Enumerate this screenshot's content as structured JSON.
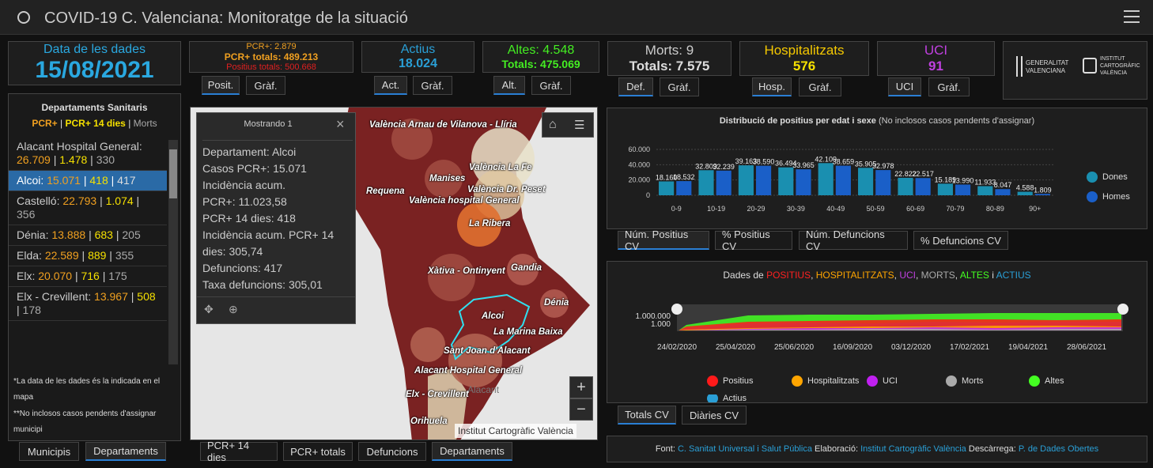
{
  "header": {
    "title": "COVID-19 C. Valenciana: Monitoratge de la situació"
  },
  "date_box": {
    "label": "Data de les dades",
    "value": "15/08/2021"
  },
  "pcr_box": {
    "line1": "PCR+: 2.879",
    "line2": "PCR+ totals: 489.213",
    "line3": "Positius totals: 500.668"
  },
  "actius_box": {
    "label": "Actius",
    "value": "18.024"
  },
  "altes_box": {
    "line1": "Altes: 4.548",
    "line2": "Totals: 475.069"
  },
  "morts_box": {
    "line1": "Morts: 9",
    "line2": "Totals: 7.575"
  },
  "hosp_box": {
    "label": "Hospitalitzats",
    "value": "576"
  },
  "uci_box": {
    "label": "UCI",
    "value": "91"
  },
  "logos": {
    "gva1": "GENERALITAT",
    "gva2": "VALENCIANA",
    "icv1": "INSTITUT",
    "icv2": "CARTOGRÀFIC",
    "icv3": "VALÈNCIA"
  },
  "tabs": {
    "posit": "Posit.",
    "graf": "Gràf.",
    "act": "Act.",
    "alt": "Alt.",
    "def": "Def.",
    "hosp": "Hosp.",
    "uci": "UCI"
  },
  "dept": {
    "title": "Departaments Sanitaris",
    "legend_pcr": "PCR+",
    "legend_14": "PCR+ 14 dies",
    "legend_morts": "Morts",
    "rows": [
      {
        "name": "Alacant Hospital General:",
        "a": "26.709",
        "b": "1.478",
        "c": "330"
      },
      {
        "name": "Alcoi:",
        "a": "15.071",
        "b": "418",
        "c": "417"
      },
      {
        "name": "Castelló:",
        "a": "22.793",
        "b": "1.074",
        "c": "356"
      },
      {
        "name": "Dénia:",
        "a": "13.888",
        "b": "683",
        "c": "205"
      },
      {
        "name": "Elda:",
        "a": "22.589",
        "b": "889",
        "c": "355"
      },
      {
        "name": "Elx:",
        "a": "20.070",
        "b": "716",
        "c": "175"
      },
      {
        "name": "Elx - Crevillent:",
        "a": "13.967",
        "b": "508",
        "c": "178"
      }
    ],
    "note1": "*La data de les dades és la indicada en el mapa",
    "note2": "**No inclosos casos pendents d'assignar municipi",
    "tab_muni": "Municipis",
    "tab_dept": "Departaments"
  },
  "popup": {
    "title": "Mostrando 1",
    "lines": [
      "Departament: Alcoi",
      "Casos PCR+: 15.071",
      "Incidència acum.",
      "PCR+: 11.023,58",
      "PCR+ 14 dies: 418",
      "Incidència acum. PCR+ 14",
      "dies: 305,74",
      "Defuncions: 417",
      "Taxa defuncions: 305,01"
    ]
  },
  "map": {
    "attribution": "Institut Cartogràfic València",
    "cities": [
      "València Arnau de Vilanova - Llíria",
      "València La Fe",
      "Manises",
      "València Dr. Peset",
      "Requena",
      "València hospital General",
      "La Ribera",
      "Xàtiva - Ontinyent",
      "Gandia",
      "Dénia",
      "Alcoi",
      "La Marina Baixa",
      "Sant Joan d'Alacant",
      "Alacant Hospital General",
      "Alacant",
      "Elx - Crevillent",
      "Orihuela"
    ],
    "tabs": [
      "PCR+ 14 dies",
      "PCR+ totals",
      "Defuncions",
      "Departaments"
    ],
    "plus": "+",
    "minus": "−"
  },
  "age_chart": {
    "title": "Distribució de positius per edat i sexe",
    "subtitle": "(No inclosos casos pendents d'assignar)",
    "ytick": [
      "60.000",
      "40.000",
      "20.000",
      "0"
    ],
    "legend": [
      "Dones",
      "Homes"
    ],
    "tabs": [
      "Núm. Positius CV",
      "% Positius CV",
      "Núm. Defuncions CV",
      "% Defuncions CV"
    ]
  },
  "chart_data": [
    {
      "type": "bar",
      "title": "Distribució de positius per edat i sexe",
      "categories": [
        "0-9",
        "10-19",
        "20-29",
        "30-39",
        "40-49",
        "50-59",
        "60-69",
        "70-79",
        "80-89",
        "90+"
      ],
      "ylim": [
        0,
        60000
      ],
      "series": [
        {
          "name": "Dones",
          "values": [
            18160,
            32809,
            39163,
            36494,
            42109,
            35905,
            22822,
            15189,
            11933,
            4588
          ]
        },
        {
          "name": "Homes",
          "values": [
            18532,
            32239,
            38590,
            33965,
            38659,
            32978,
            22517,
            13990,
            8047,
            1809
          ]
        }
      ],
      "labels": {
        "Dones": [
          "18.160",
          "32.809",
          "39.163",
          "36.494",
          "42.109",
          "35.905",
          "22.822",
          "15.189",
          "11.933",
          "4.588"
        ],
        "Homes": [
          "18.532",
          "32.239",
          "38.590",
          "33.965",
          "38.659",
          "32.978",
          "22.517",
          "13.990",
          "8.047",
          "1.809"
        ]
      }
    },
    {
      "type": "line",
      "title": "Dades de POSITIUS, HOSPITALITZATS, UCI, MORTS, ALTES i ACTIUS",
      "x": [
        "24/02/2020",
        "25/04/2020",
        "25/06/2020",
        "16/09/2020",
        "03/12/2020",
        "17/02/2021",
        "19/04/2021",
        "28/06/2021"
      ],
      "ytick": [
        "1.000.000",
        "1.000"
      ],
      "series": [
        {
          "name": "Positius"
        },
        {
          "name": "Hospitalitzats"
        },
        {
          "name": "UCI"
        },
        {
          "name": "Morts"
        },
        {
          "name": "Altes"
        },
        {
          "name": "Actius"
        }
      ]
    }
  ],
  "ts_chart": {
    "title_pre": "Dades de ",
    "t1": "POSITIUS",
    "t2": "HOSPITALITZATS",
    "t3": "UCI",
    "t4": "MORTS",
    "t5": "ALTES",
    "t6": "ACTIUS",
    "sep": ", ",
    "and": " i ",
    "legend": [
      "Positius",
      "Hospitalitzats",
      "UCI",
      "Morts",
      "Altes",
      "Actius"
    ],
    "tabs": [
      "Totals CV",
      "Diàries CV"
    ]
  },
  "footer": {
    "font": "Font:",
    "src": "C. Sanitat Universal i Salut Pública",
    "elab": "Elaboració:",
    "elab_src": "Institut Cartogràfic València",
    "desc": "Descàrrega:",
    "desc_src": "P. de Dades Obertes"
  },
  "colors": {
    "positius": "#ff1a1a",
    "hosp": "#ffa500",
    "uci": "#c020f0",
    "morts": "#aaaaaa",
    "altes": "#44ff22",
    "actius": "#2a9fd6",
    "dones": "#1a8fb0",
    "homes": "#1a5fc8"
  }
}
